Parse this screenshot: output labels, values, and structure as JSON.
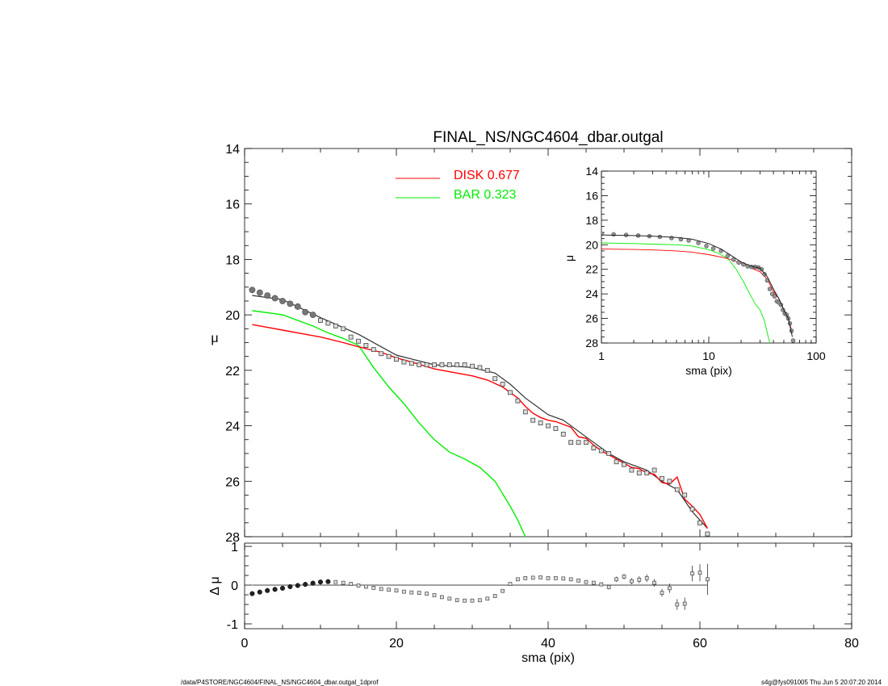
{
  "title": "FINAL_NS/NGC4604_dbar.outgal",
  "footer": {
    "left": "/data/P4STORE/NGC4604/FINAL_NS/NGC4604_dbar.outgal_1dprof",
    "right": "s4g@fys091005  Thu Jun  5 20:07:20 2014"
  },
  "colors": {
    "disk": "#ff0000",
    "bar": "#00ee00",
    "data": "#555555",
    "total": "#333333"
  },
  "chart_data": [
    {
      "type": "line",
      "panel": "main",
      "title": "FINAL_NS/NGC4604_dbar.outgal",
      "xlabel": "",
      "ylabel": "μ",
      "xlim": [
        0,
        80
      ],
      "ylim": [
        28,
        14
      ],
      "xticks": [
        0,
        20,
        40,
        60,
        80
      ],
      "yticks": [
        14,
        16,
        18,
        20,
        22,
        24,
        26,
        28
      ],
      "legend": [
        {
          "label": "DISK  0.677",
          "series": "disk"
        },
        {
          "label": "BAR  0.323",
          "series": "bar"
        }
      ],
      "legend_position": "top-center",
      "series": [
        {
          "key": "data",
          "style": "markers",
          "x": [
            1,
            2,
            3,
            4,
            5,
            6,
            7,
            8,
            9,
            10,
            11,
            12,
            13,
            14,
            15,
            16,
            17,
            18,
            19,
            20,
            21,
            22,
            23,
            24,
            25,
            26,
            27,
            28,
            29,
            30,
            31,
            32,
            33,
            34,
            35,
            36,
            37,
            38,
            39,
            40,
            41,
            42,
            43,
            44,
            45,
            46,
            47,
            48,
            49,
            50,
            51,
            52,
            53,
            54,
            55,
            56,
            57,
            58,
            59,
            60,
            61
          ],
          "y": [
            19.1,
            19.2,
            19.3,
            19.4,
            19.5,
            19.6,
            19.7,
            19.9,
            20.0,
            20.2,
            20.3,
            20.4,
            20.5,
            20.8,
            20.95,
            21.1,
            21.25,
            21.4,
            21.5,
            21.6,
            21.7,
            21.75,
            21.8,
            21.8,
            21.8,
            21.8,
            21.8,
            21.8,
            21.8,
            21.85,
            21.9,
            22.0,
            22.3,
            22.5,
            22.8,
            23.1,
            23.5,
            23.8,
            23.9,
            24.0,
            24.1,
            24.3,
            24.6,
            24.6,
            24.6,
            24.8,
            24.9,
            25.0,
            25.3,
            25.4,
            25.6,
            25.7,
            25.7,
            25.6,
            25.9,
            26.0,
            26.3,
            26.5,
            27.0,
            27.5,
            27.9
          ]
        },
        {
          "key": "total",
          "name": "",
          "style": "line",
          "x": [
            1,
            5,
            10,
            15,
            20,
            25,
            30,
            33,
            35,
            37,
            40,
            42,
            45,
            48,
            50,
            53,
            55,
            57,
            59,
            61
          ],
          "y": [
            19.3,
            19.45,
            20.1,
            20.7,
            21.45,
            21.8,
            21.9,
            22.1,
            22.5,
            23.0,
            23.6,
            23.8,
            24.4,
            25.0,
            25.3,
            25.6,
            26.0,
            26.3,
            27.1,
            27.7
          ]
        },
        {
          "key": "disk",
          "name": "DISK  0.677",
          "style": "line",
          "x": [
            1,
            3,
            5,
            8,
            10,
            13,
            15,
            18,
            20,
            22,
            25,
            28,
            30,
            32,
            34,
            35,
            36,
            37,
            38,
            39,
            40,
            41,
            42,
            43,
            44,
            45,
            46,
            47,
            48,
            49,
            50,
            51,
            52,
            53,
            54,
            55,
            56,
            57,
            58,
            59,
            60,
            61
          ],
          "y": [
            20.35,
            20.45,
            20.55,
            20.7,
            20.8,
            21.0,
            21.15,
            21.35,
            21.55,
            21.7,
            21.95,
            22.1,
            22.2,
            22.35,
            22.6,
            22.8,
            23.0,
            23.3,
            23.55,
            23.7,
            23.8,
            23.85,
            23.95,
            24.05,
            24.4,
            24.45,
            24.7,
            24.9,
            25.05,
            25.2,
            25.35,
            25.5,
            25.55,
            25.7,
            25.75,
            26.05,
            26.1,
            25.85,
            26.65,
            26.9,
            27.2,
            27.7
          ]
        },
        {
          "key": "bar",
          "name": "BAR  0.323",
          "style": "line",
          "x": [
            1,
            3,
            5,
            7,
            9,
            11,
            13,
            15,
            17,
            19,
            21,
            23,
            25,
            27,
            29,
            31,
            33,
            35,
            36,
            37
          ],
          "y": [
            19.85,
            19.92,
            20.0,
            20.2,
            20.4,
            20.65,
            20.85,
            21.1,
            21.9,
            22.6,
            23.2,
            23.9,
            24.5,
            24.95,
            25.2,
            25.5,
            26.0,
            26.9,
            27.4,
            28.0
          ]
        }
      ]
    },
    {
      "type": "scatter",
      "panel": "residual",
      "xlabel": "sma (pix)",
      "ylabel": "Δ μ",
      "xlim": [
        0,
        80
      ],
      "ylim": [
        -1.1,
        1.0
      ],
      "xticks": [
        0,
        20,
        40,
        60,
        80
      ],
      "yticks": [
        -1,
        0,
        1
      ],
      "series": [
        {
          "key": "resid",
          "x": [
            1,
            2,
            3,
            4,
            5,
            6,
            7,
            8,
            9,
            10,
            11,
            12,
            13,
            14,
            15,
            16,
            17,
            18,
            19,
            20,
            21,
            22,
            23,
            24,
            25,
            26,
            27,
            28,
            29,
            30,
            31,
            32,
            33,
            34,
            35,
            36,
            37,
            38,
            39,
            40,
            41,
            42,
            43,
            44,
            45,
            46,
            47,
            48,
            49,
            50,
            51,
            52,
            53,
            54,
            55,
            56,
            57,
            58,
            59,
            60,
            61
          ],
          "y": [
            -0.22,
            -0.18,
            -0.14,
            -0.11,
            -0.08,
            -0.04,
            -0.01,
            0.02,
            0.05,
            0.08,
            0.09,
            0.08,
            0.06,
            0.03,
            -0.01,
            -0.04,
            -0.07,
            -0.1,
            -0.12,
            -0.14,
            -0.17,
            -0.19,
            -0.2,
            -0.22,
            -0.26,
            -0.31,
            -0.35,
            -0.39,
            -0.4,
            -0.4,
            -0.39,
            -0.35,
            -0.28,
            -0.15,
            0.03,
            0.15,
            0.18,
            0.19,
            0.2,
            0.18,
            0.18,
            0.17,
            0.15,
            0.12,
            0.08,
            0.06,
            0.02,
            -0.05,
            0.15,
            0.22,
            0.1,
            0.14,
            0.18,
            0.06,
            -0.2,
            -0.08,
            -0.5,
            -0.48,
            0.3,
            0.32,
            0.15
          ],
          "err": [
            0.01,
            0.01,
            0.01,
            0.01,
            0.01,
            0.01,
            0.01,
            0.01,
            0.01,
            0.01,
            0.01,
            0.01,
            0.01,
            0.01,
            0.01,
            0.01,
            0.01,
            0.01,
            0.01,
            0.01,
            0.01,
            0.01,
            0.01,
            0.01,
            0.01,
            0.01,
            0.01,
            0.01,
            0.01,
            0.01,
            0.01,
            0.01,
            0.01,
            0.01,
            0.01,
            0.01,
            0.01,
            0.01,
            0.01,
            0.02,
            0.02,
            0.02,
            0.03,
            0.03,
            0.04,
            0.05,
            0.05,
            0.06,
            0.07,
            0.07,
            0.08,
            0.09,
            0.1,
            0.1,
            0.1,
            0.12,
            0.14,
            0.16,
            0.2,
            0.22,
            0.4
          ]
        }
      ]
    },
    {
      "type": "line",
      "panel": "inset",
      "xlabel": "sma (pix)",
      "ylabel": "μ",
      "xscale": "log",
      "xlim": [
        1,
        100
      ],
      "ylim": [
        28,
        14
      ],
      "xticks": [
        1,
        10,
        100
      ],
      "yticks": [
        14,
        16,
        18,
        20,
        22,
        24,
        26,
        28
      ],
      "series": [
        {
          "key": "data",
          "style": "markers",
          "x": [
            1,
            1.3,
            1.7,
            2.2,
            2.8,
            3.5,
            4.5,
            5.5,
            6.5,
            8,
            9.5,
            11,
            13,
            15,
            17,
            19,
            21,
            23,
            25,
            27,
            29,
            31,
            33,
            35,
            37,
            39,
            41,
            43,
            45,
            47,
            49,
            51,
            53,
            55,
            57,
            59,
            61
          ],
          "y": [
            19.1,
            19.15,
            19.2,
            19.25,
            19.3,
            19.35,
            19.45,
            19.55,
            19.65,
            19.85,
            20.1,
            20.3,
            20.5,
            20.9,
            21.2,
            21.45,
            21.6,
            21.75,
            21.8,
            21.8,
            21.85,
            22.0,
            22.4,
            22.9,
            23.6,
            24.0,
            24.2,
            24.6,
            24.7,
            24.9,
            25.3,
            25.6,
            25.7,
            26.0,
            26.4,
            27.0,
            27.8
          ]
        },
        {
          "key": "total",
          "x": [
            1,
            2,
            3,
            5,
            7,
            10,
            13,
            16,
            20,
            25,
            30,
            35,
            40,
            45,
            50,
            55,
            60
          ],
          "y": [
            19.2,
            19.25,
            19.3,
            19.4,
            19.55,
            19.9,
            20.35,
            20.85,
            21.4,
            21.75,
            21.9,
            22.6,
            23.6,
            24.4,
            25.3,
            26.0,
            27.5
          ]
        },
        {
          "key": "disk",
          "x": [
            1,
            2,
            3,
            5,
            7,
            10,
            13,
            16,
            20,
            25,
            30,
            35,
            40,
            45,
            50,
            55,
            60
          ],
          "y": [
            20.35,
            20.38,
            20.42,
            20.5,
            20.6,
            20.8,
            21.0,
            21.2,
            21.5,
            21.9,
            22.2,
            22.8,
            23.8,
            24.4,
            25.3,
            26.0,
            27.2
          ]
        },
        {
          "key": "bar",
          "x": [
            1,
            2,
            3,
            5,
            7,
            10,
            12,
            15,
            18,
            21,
            24,
            27,
            30,
            33,
            36,
            37
          ],
          "y": [
            19.85,
            19.9,
            19.95,
            20.0,
            20.1,
            20.4,
            20.65,
            21.1,
            22.0,
            23.0,
            24.0,
            24.8,
            25.3,
            26.2,
            27.6,
            28.0
          ]
        }
      ]
    }
  ]
}
